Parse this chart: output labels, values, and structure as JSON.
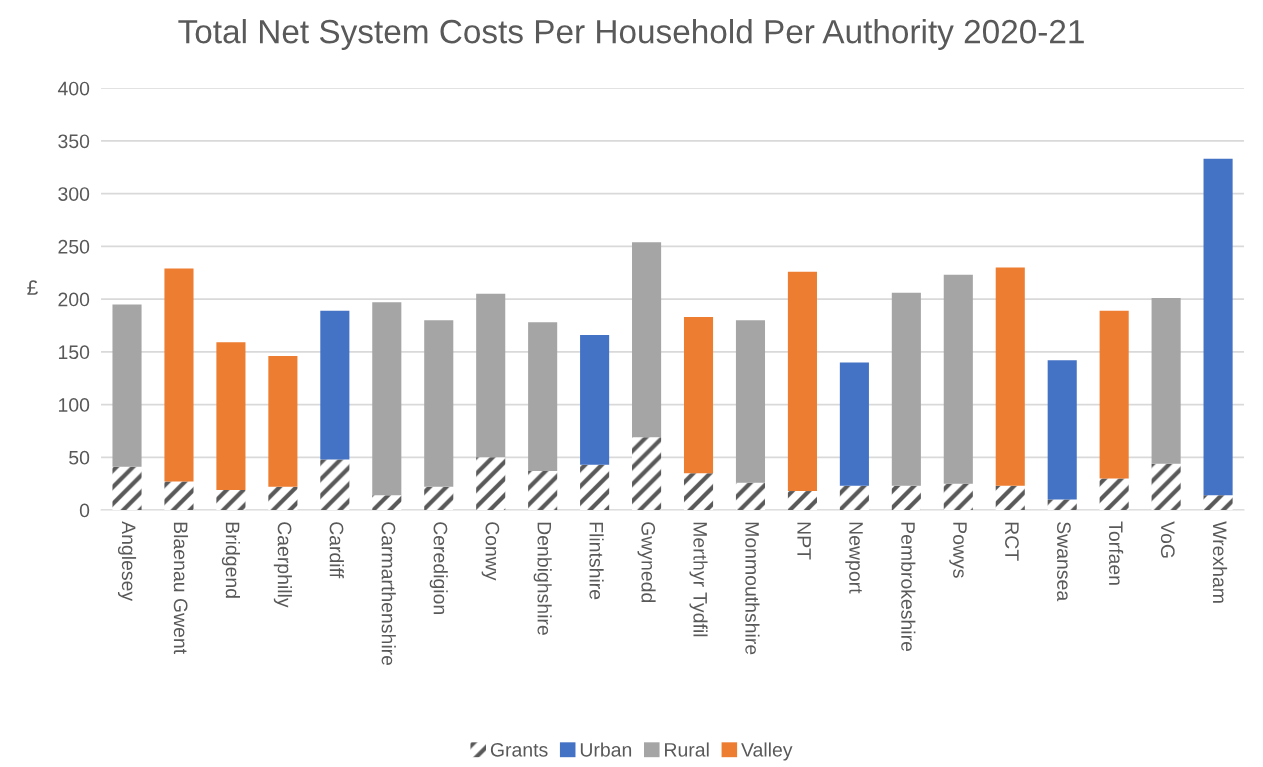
{
  "chart_data": {
    "type": "bar",
    "title": "Total Net System Costs Per Household Per Authority 2020-21",
    "ylabel": "£",
    "stacked": true,
    "categories": [
      "Anglesey",
      "Blaenau Gwent",
      "Bridgend",
      "Caerphilly",
      "Cardiff",
      "Carmarthenshire",
      "Ceredigion",
      "Conwy",
      "Denbighshire",
      "Flintshire",
      "Gwynedd",
      "Merthyr Tydfil",
      "Monmouthshire",
      "NPT",
      "Newport",
      "Pembrokeshire",
      "Powys",
      "RCT",
      "Swansea",
      "Torfaen",
      "VoG",
      "Wrexham"
    ],
    "series": [
      {
        "name": "Grants",
        "color": "#595959",
        "values": [
          41,
          27,
          19,
          22,
          48,
          14,
          22,
          50,
          37,
          43,
          69,
          35,
          26,
          18,
          23,
          23,
          25,
          23,
          10,
          30,
          44,
          14
        ]
      },
      {
        "name": "Urban",
        "color": "#4472c4",
        "values": [
          null,
          null,
          null,
          null,
          141,
          null,
          null,
          null,
          null,
          123,
          null,
          null,
          null,
          null,
          117,
          null,
          null,
          null,
          132,
          null,
          null,
          319
        ]
      },
      {
        "name": "Rural",
        "color": "#a5a5a5",
        "values": [
          154,
          null,
          null,
          null,
          null,
          183,
          158,
          155,
          141,
          null,
          185,
          null,
          154,
          null,
          null,
          183,
          198,
          null,
          null,
          null,
          157,
          null
        ]
      },
      {
        "name": "Valley",
        "color": "#ed7d31",
        "values": [
          null,
          202,
          140,
          124,
          null,
          null,
          null,
          null,
          null,
          null,
          null,
          148,
          null,
          208,
          null,
          null,
          null,
          207,
          null,
          159,
          null,
          null
        ]
      }
    ],
    "ylim": [
      0,
      400
    ],
    "yticks": [
      0,
      50,
      100,
      150,
      200,
      250,
      300,
      350,
      400
    ],
    "grid": "y",
    "legend": "bottom"
  }
}
